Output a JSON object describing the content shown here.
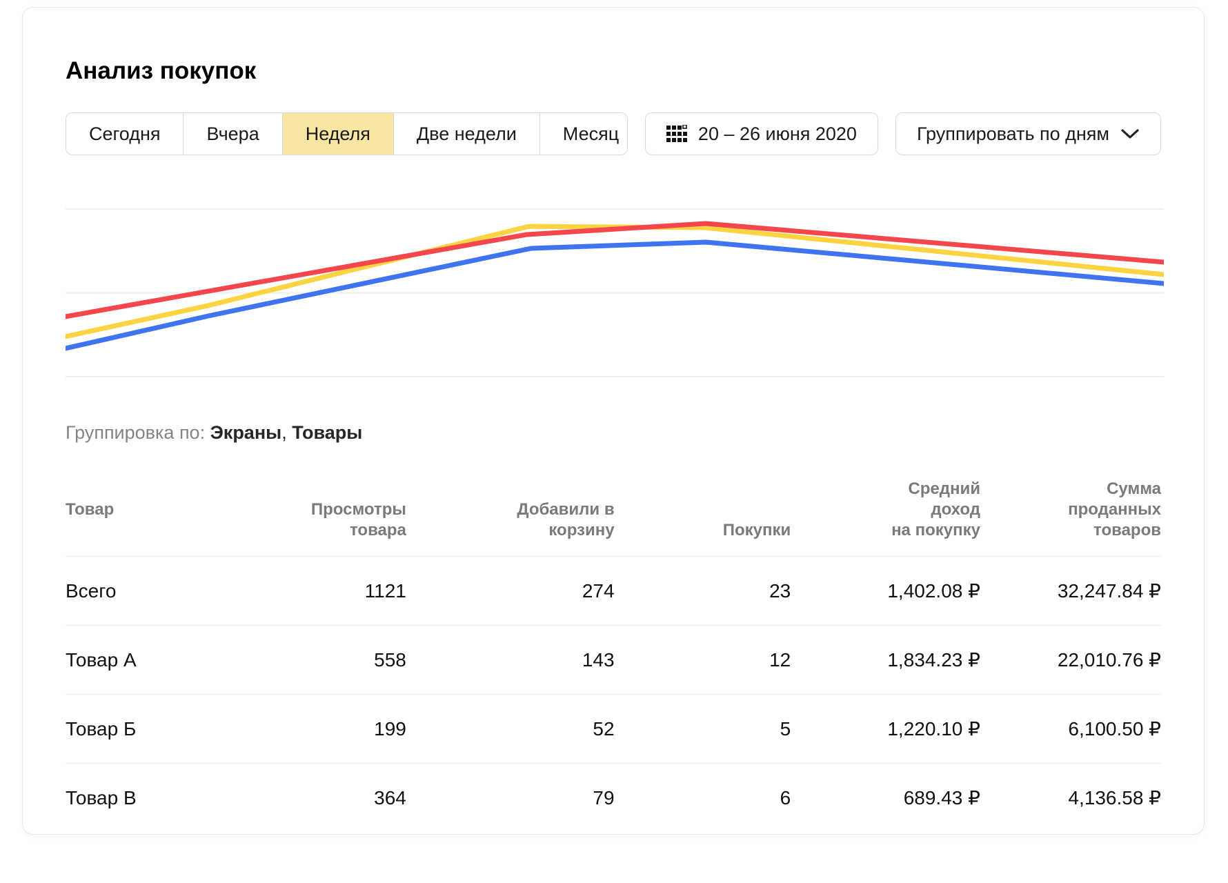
{
  "page": {
    "title": "Анализ покупок"
  },
  "period_tabs": [
    {
      "label": "Сегодня",
      "selected": false
    },
    {
      "label": "Вчера",
      "selected": false
    },
    {
      "label": "Неделя",
      "selected": true
    },
    {
      "label": "Две недели",
      "selected": false
    },
    {
      "label": "Месяц",
      "selected": false
    }
  ],
  "date_picker": {
    "label": "20 – 26 июня 2020",
    "icon": "calendar-grid-icon"
  },
  "group_select": {
    "label": "Группировать по дням",
    "icon": "chevron-down-icon"
  },
  "grouping": {
    "prefix": "Группировка по:",
    "items": [
      "Экраны",
      "Товары"
    ]
  },
  "colors": {
    "selected_tab_bg": "#f7e7a3",
    "border": "#d9d9d9",
    "table_line": "#ececec",
    "header_text": "#7a7a7a",
    "gridline": "#efefef"
  },
  "chart_data": {
    "type": "line",
    "title": "",
    "x_range_label": "20 – 26 июня 2020",
    "axes_visible": false,
    "legend": "none",
    "gridlines_horizontal": 3,
    "value_note": "no axis labels shown; values normalized 0-100 from pixel positions",
    "series": [
      {
        "name": "series-red",
        "color": "#f4474d",
        "points": [
          {
            "x": 0.0,
            "v": 35.9
          },
          {
            "x": 0.42,
            "v": 76.9
          },
          {
            "x": 0.583,
            "v": 82.4
          },
          {
            "x": 1.0,
            "v": 63.1
          }
        ]
      },
      {
        "name": "series-yellow",
        "color": "#fcd340",
        "points": [
          {
            "x": 0.0,
            "v": 25.9
          },
          {
            "x": 0.13,
            "v": 41.4
          },
          {
            "x": 0.422,
            "v": 81.0
          },
          {
            "x": 0.583,
            "v": 80.3
          },
          {
            "x": 1.0,
            "v": 56.9
          }
        ]
      },
      {
        "name": "series-blue",
        "color": "#3e74f0",
        "points": [
          {
            "x": 0.0,
            "v": 20.0
          },
          {
            "x": 0.13,
            "v": 36.2
          },
          {
            "x": 0.424,
            "v": 70.0
          },
          {
            "x": 0.583,
            "v": 73.1
          },
          {
            "x": 1.0,
            "v": 52.4
          }
        ]
      }
    ]
  },
  "table": {
    "columns": [
      {
        "label": "Товар"
      },
      {
        "label": "Просмотры\nтовара"
      },
      {
        "label": "Добавили в\nкорзину"
      },
      {
        "label": "Покупки"
      },
      {
        "label": "Средний\nдоход\nна покупку"
      },
      {
        "label": "Сумма\nпроданных\nтоваров"
      }
    ],
    "rows": [
      [
        "Всего",
        "1121",
        "274",
        "23",
        "1,402.08 ₽",
        "32,247.84 ₽"
      ],
      [
        "Товар А",
        "558",
        "143",
        "12",
        "1,834.23 ₽",
        "22,010.76 ₽"
      ],
      [
        "Товар Б",
        "199",
        "52",
        "5",
        "1,220.10 ₽",
        "6,100.50 ₽"
      ],
      [
        "Товар В",
        "364",
        "79",
        "6",
        "689.43 ₽",
        "4,136.58 ₽"
      ]
    ]
  }
}
